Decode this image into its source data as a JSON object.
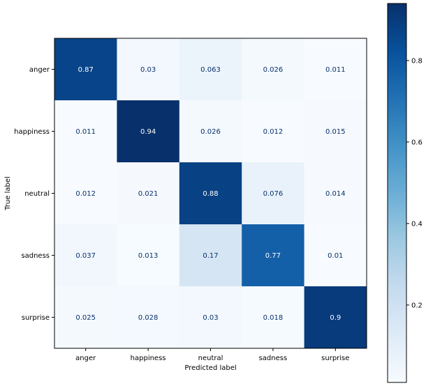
{
  "chart_data": {
    "type": "heatmap",
    "xlabel": "Predicted label",
    "ylabel": "True label",
    "x_categories": [
      "anger",
      "happiness",
      "neutral",
      "sadness",
      "surprise"
    ],
    "y_categories": [
      "anger",
      "happiness",
      "neutral",
      "sadness",
      "surprise"
    ],
    "values": [
      [
        0.87,
        0.03,
        0.063,
        0.026,
        0.011
      ],
      [
        0.011,
        0.94,
        0.026,
        0.012,
        0.015
      ],
      [
        0.012,
        0.021,
        0.88,
        0.076,
        0.014
      ],
      [
        0.037,
        0.013,
        0.17,
        0.77,
        0.01
      ],
      [
        0.025,
        0.028,
        0.03,
        0.018,
        0.9
      ]
    ],
    "value_labels": [
      [
        "0.87",
        "0.03",
        "0.063",
        "0.026",
        "0.011"
      ],
      [
        "0.011",
        "0.94",
        "0.026",
        "0.012",
        "0.015"
      ],
      [
        "0.012",
        "0.021",
        "0.88",
        "0.076",
        "0.014"
      ],
      [
        "0.037",
        "0.013",
        "0.17",
        "0.77",
        "0.01"
      ],
      [
        "0.025",
        "0.028",
        "0.03",
        "0.018",
        "0.9"
      ]
    ],
    "colormap": "Blues",
    "colorbar": {
      "range": [
        0.01,
        0.94
      ],
      "ticks": [
        0.2,
        0.4,
        0.6,
        0.8
      ],
      "tick_labels": [
        "0.2",
        "0.4",
        "0.6",
        "0.8"
      ],
      "placement": "right"
    },
    "text_color_light": "#ffffff",
    "text_color_dark": "#08306b",
    "grid": false
  }
}
